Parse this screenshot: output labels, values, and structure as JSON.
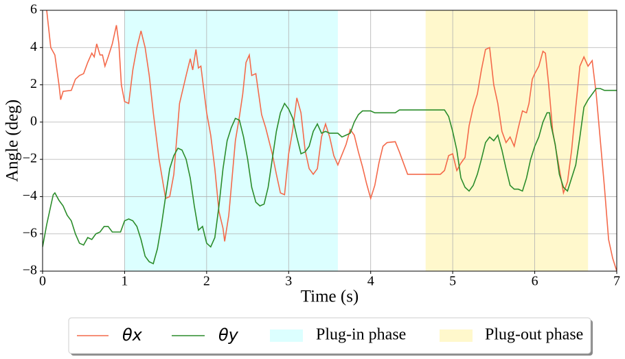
{
  "chart_data": {
    "type": "line",
    "x_label": "Time (s)",
    "y_label": "Angle (deg)",
    "xlim": [
      0,
      7
    ],
    "ylim": [
      -8,
      6
    ],
    "xticks": [
      0,
      1,
      2,
      3,
      4,
      5,
      6,
      7
    ],
    "yticks": [
      {
        "value": -8,
        "label": "−8"
      },
      {
        "value": -6,
        "label": "−6"
      },
      {
        "value": -4,
        "label": "−4"
      },
      {
        "value": -2,
        "label": "−2"
      },
      0,
      2,
      4,
      6
    ],
    "grid": true,
    "legend": "below",
    "spans": [
      {
        "label": "Plug-in phase",
        "xlim": [
          1.0,
          3.6
        ],
        "color": "#dcffff"
      },
      {
        "label": "Plug-out phase",
        "xlim": [
          4.67,
          6.65
        ],
        "color": "#fff8cc"
      }
    ],
    "series": [
      {
        "name": "θx",
        "color": "#f4694a",
        "x": [
          0.05,
          0.1,
          0.15,
          0.2,
          0.22,
          0.25,
          0.35,
          0.4,
          0.45,
          0.5,
          0.55,
          0.6,
          0.63,
          0.66,
          0.7,
          0.73,
          0.76,
          0.8,
          0.85,
          0.9,
          0.93,
          0.96,
          1.0,
          1.05,
          1.1,
          1.15,
          1.2,
          1.25,
          1.3,
          1.35,
          1.42,
          1.5,
          1.55,
          1.6,
          1.67,
          1.75,
          1.8,
          1.83,
          1.87,
          1.9,
          1.93,
          2.0,
          2.05,
          2.1,
          2.15,
          2.2,
          2.22,
          2.27,
          2.3,
          2.35,
          2.4,
          2.44,
          2.48,
          2.52,
          2.55,
          2.6,
          2.67,
          2.72,
          2.8,
          2.85,
          2.9,
          2.95,
          3.0,
          3.05,
          3.1,
          3.15,
          3.2,
          3.25,
          3.3,
          3.35,
          3.4,
          3.45,
          3.5,
          3.55,
          3.6,
          3.7,
          3.75,
          3.8,
          3.85,
          3.9,
          3.95,
          4.0,
          4.05,
          4.1,
          4.15,
          4.2,
          4.3,
          4.35,
          4.45,
          4.6,
          4.85,
          4.9,
          4.95,
          5.0,
          5.05,
          5.1,
          5.15,
          5.2,
          5.25,
          5.3,
          5.35,
          5.4,
          5.45,
          5.5,
          5.55,
          5.6,
          5.65,
          5.7,
          5.75,
          5.8,
          5.85,
          5.9,
          5.93,
          5.97,
          6.0,
          6.05,
          6.1,
          6.13,
          6.17,
          6.22,
          6.3,
          6.35,
          6.4,
          6.45,
          6.5,
          6.55,
          6.6,
          6.65,
          6.7,
          6.75,
          6.8,
          6.85,
          6.9,
          6.95,
          7.0
        ],
        "values": [
          6.0,
          4.0,
          3.6,
          2.0,
          1.2,
          1.65,
          1.7,
          2.3,
          2.5,
          2.6,
          3.2,
          3.7,
          3.5,
          4.2,
          3.6,
          3.6,
          3.0,
          3.5,
          4.2,
          5.2,
          4.2,
          2.0,
          1.1,
          1.0,
          2.8,
          4.0,
          4.9,
          4.0,
          2.5,
          0.5,
          -2.0,
          -4.1,
          -4.0,
          -2.8,
          1.0,
          2.5,
          3.4,
          2.8,
          3.9,
          2.9,
          3.0,
          0.5,
          -0.7,
          -2.5,
          -4.8,
          -5.7,
          -6.4,
          -5.0,
          -3.5,
          -1.0,
          0.3,
          1.5,
          3.2,
          3.6,
          2.5,
          2.6,
          0.4,
          -0.3,
          -1.7,
          -2.8,
          -3.8,
          -3.9,
          -1.7,
          -0.4,
          1.3,
          0.5,
          -1.5,
          -2.5,
          -2.8,
          -2.5,
          -0.8,
          -0.1,
          -0.8,
          -1.8,
          -2.3,
          -1.2,
          -0.4,
          -0.7,
          -1.6,
          -2.4,
          -3.3,
          -4.1,
          -3.4,
          -2.2,
          -1.3,
          -1.1,
          -1.05,
          -1.6,
          -2.8,
          -2.8,
          -2.8,
          -2.6,
          -1.8,
          -1.7,
          -2.6,
          -2.2,
          -1.9,
          -0.2,
          0.8,
          1.5,
          2.8,
          3.9,
          4.0,
          2.0,
          1.0,
          -0.5,
          -1.1,
          -0.8,
          -1.3,
          -0.3,
          0.6,
          0.5,
          1.0,
          2.3,
          2.6,
          3.0,
          3.8,
          3.7,
          2.0,
          -0.5,
          -2.5,
          -3.8,
          -3.2,
          -1.5,
          0.8,
          3.0,
          3.5,
          3.0,
          3.3,
          1.5,
          -1.0,
          -3.5,
          -6.3,
          -7.3,
          -8.0
        ]
      },
      {
        "name": "θy",
        "color": "#2a8c2a",
        "x": [
          0,
          0.05,
          0.1,
          0.13,
          0.15,
          0.2,
          0.25,
          0.3,
          0.35,
          0.4,
          0.45,
          0.5,
          0.55,
          0.6,
          0.65,
          0.7,
          0.75,
          0.8,
          0.85,
          0.9,
          0.95,
          1.0,
          1.05,
          1.1,
          1.15,
          1.2,
          1.25,
          1.3,
          1.35,
          1.4,
          1.45,
          1.5,
          1.55,
          1.6,
          1.65,
          1.7,
          1.75,
          1.8,
          1.85,
          1.9,
          1.95,
          2.0,
          2.05,
          2.1,
          2.15,
          2.2,
          2.25,
          2.3,
          2.35,
          2.4,
          2.45,
          2.5,
          2.55,
          2.6,
          2.65,
          2.7,
          2.75,
          2.8,
          2.85,
          2.9,
          2.95,
          3.0,
          3.05,
          3.1,
          3.15,
          3.2,
          3.25,
          3.3,
          3.35,
          3.4,
          3.45,
          3.5,
          3.6,
          3.65,
          3.7,
          3.75,
          3.8,
          3.85,
          3.9,
          4.0,
          4.05,
          4.3,
          4.35,
          4.6,
          4.9,
          4.95,
          5.0,
          5.05,
          5.1,
          5.15,
          5.2,
          5.25,
          5.3,
          5.35,
          5.4,
          5.45,
          5.5,
          5.55,
          5.6,
          5.65,
          5.7,
          5.75,
          5.8,
          5.85,
          5.9,
          5.95,
          6.0,
          6.05,
          6.1,
          6.15,
          6.18,
          6.2,
          6.25,
          6.3,
          6.35,
          6.4,
          6.45,
          6.5,
          6.55,
          6.6,
          6.65,
          6.7,
          6.75,
          6.8,
          6.85,
          7.0
        ],
        "values": [
          -6.7,
          -5.5,
          -4.5,
          -3.9,
          -3.8,
          -4.2,
          -4.5,
          -5.0,
          -5.3,
          -6.0,
          -6.5,
          -6.6,
          -6.2,
          -6.3,
          -6.0,
          -5.9,
          -5.6,
          -5.6,
          -5.9,
          -5.9,
          -5.9,
          -5.3,
          -5.2,
          -5.3,
          -5.6,
          -6.3,
          -7.2,
          -7.5,
          -7.6,
          -6.8,
          -5.5,
          -4.0,
          -2.5,
          -1.8,
          -1.4,
          -1.5,
          -2.0,
          -3.0,
          -4.5,
          -5.8,
          -5.6,
          -6.5,
          -6.7,
          -6.2,
          -4.5,
          -2.5,
          -1.0,
          -0.3,
          0.2,
          0.1,
          -0.8,
          -2.0,
          -3.5,
          -4.3,
          -4.5,
          -4.4,
          -3.5,
          -2.0,
          -0.5,
          0.5,
          1.0,
          0.7,
          0.2,
          -0.8,
          -1.7,
          -1.6,
          -1.3,
          -0.5,
          -0.1,
          -0.6,
          -0.5,
          -0.6,
          -0.6,
          -0.8,
          -0.7,
          -0.6,
          0.0,
          0.4,
          0.6,
          0.6,
          0.5,
          0.5,
          0.65,
          0.65,
          0.65,
          0.3,
          -0.5,
          -1.5,
          -3.0,
          -3.5,
          -3.7,
          -3.4,
          -2.8,
          -2.0,
          -1.1,
          -0.8,
          -1.0,
          -0.7,
          -1.5,
          -2.5,
          -3.4,
          -3.6,
          -3.6,
          -3.7,
          -3.0,
          -2.0,
          -1.3,
          -0.8,
          0.0,
          0.5,
          0.5,
          -0.2,
          -1.2,
          -2.8,
          -3.5,
          -3.7,
          -3.0,
          -2.3,
          -0.8,
          0.8,
          1.2,
          1.5,
          1.8,
          1.8,
          1.7,
          1.7
        ]
      }
    ]
  }
}
